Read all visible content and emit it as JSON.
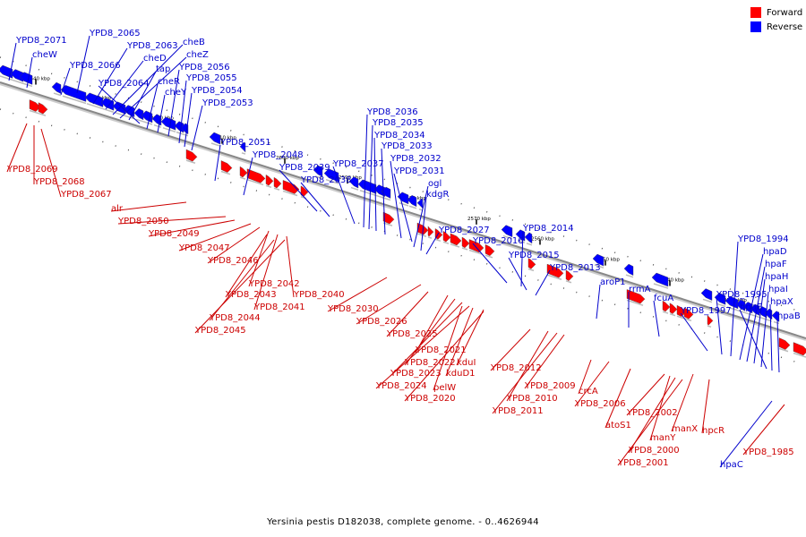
{
  "caption": "Yersinia pestis D182038, complete genome. - 0..4626944",
  "legend": [
    {
      "label": "Forward",
      "color": "#ff0000"
    },
    {
      "label": "Reverse",
      "color": "#0000ff"
    }
  ],
  "colors": {
    "forward": "#ff0000",
    "reverse": "#0000ff",
    "forward_label": "#cc0000",
    "reverse_label": "#0000cc",
    "axis": "#888888"
  },
  "scale_labels": [
    "2640 kbp",
    "2630 kbp",
    "2620 kbp",
    "2610 kbp",
    "2600 kbp",
    "2590 kbp",
    "2580 kbp",
    "2570 kbp",
    "2560 kbp",
    "2550 kbp",
    "2540 kbp",
    "2530 kbp"
  ],
  "reverse_genes": [
    "YPD8_2071",
    "cheW",
    "YPD8_2065",
    "YPD8_2066",
    "YPD8_2063",
    "cheD",
    "cheB",
    "cheZ",
    "tap",
    "YPD8_2064",
    "cheR",
    "cheY",
    "YPD8_2056",
    "YPD8_2055",
    "YPD8_2054",
    "YPD8_2053",
    "YPD8_2051",
    "YPD8_2048",
    "YPD8_2039",
    "YPD8_2038",
    "YPD8_2037",
    "YPD8_2036",
    "YPD8_2035",
    "YPD8_2034",
    "YPD8_2033",
    "YPD8_2032",
    "YPD8_2031",
    "ogl",
    "kdgR",
    "YPD8_2027",
    "YPD8_2016",
    "YPD8_2014",
    "YPD8_2015",
    "YPD8_2013",
    "aroP1",
    "rrmA",
    "fcuA",
    "YPD8_1997",
    "YPD8_1995",
    "YPD8_1994",
    "hpaD",
    "hpaF",
    "hpaH",
    "hpaI",
    "hpaE",
    "hpaX",
    "hpaB",
    "hpaC"
  ],
  "forward_genes": [
    "YPD8_2069",
    "YPD8_2068",
    "YPD8_2067",
    "alr",
    "YPD8_2050",
    "YPD8_2049",
    "YPD8_2047",
    "YPD8_2046",
    "YPD8_2042",
    "YPD8_2043",
    "YPD8_2041",
    "YPD8_2040",
    "YPD8_2044",
    "YPD8_2045",
    "YPD8_2030",
    "YPD8_2026",
    "YPD8_2025",
    "YPD8_2021",
    "YPD8_2022",
    "YPD8_2023",
    "YPD8_2024",
    "kduI",
    "kduD1",
    "pelW",
    "YPD8_2020",
    "YPD8_2012",
    "YPD8_2009",
    "YPD8_2010",
    "YPD8_2011",
    "crcA",
    "YPD8_2006",
    "atoS1",
    "YPD8_2002",
    "manY",
    "YPD8_2000",
    "YPD8_2001",
    "manX",
    "hpcR",
    "YPD8_1985"
  ]
}
